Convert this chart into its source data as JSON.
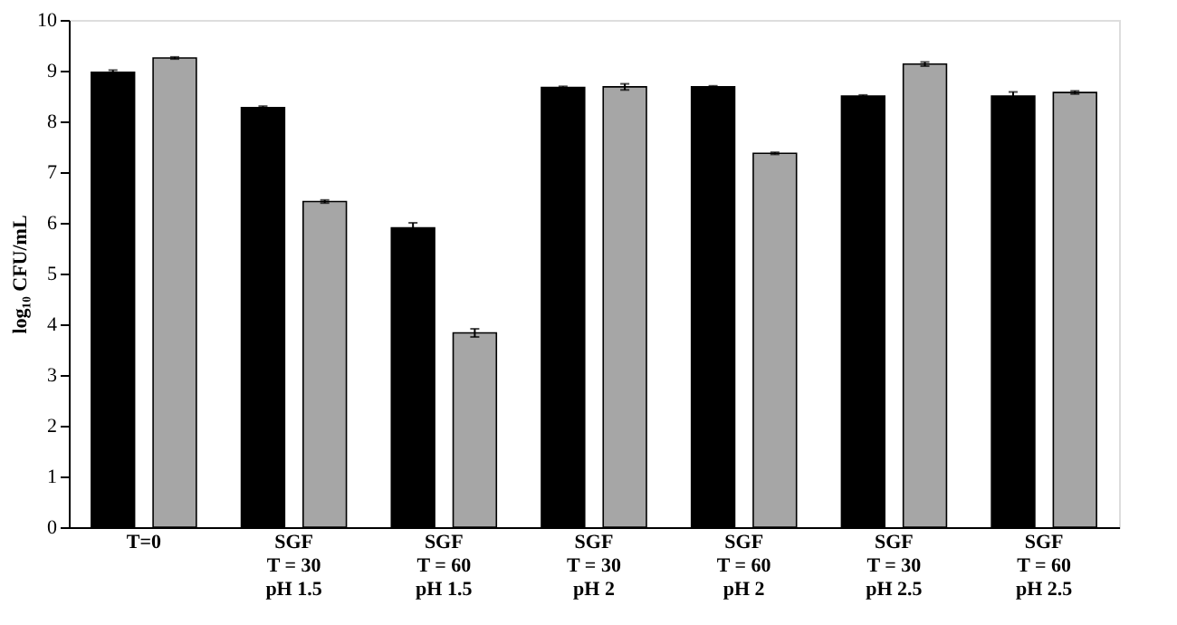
{
  "chart_data": {
    "type": "bar",
    "ylabel": "log₁₀ CFU/mL",
    "categories": [
      "T=0",
      "SGF\nT = 30\npH 1.5",
      "SGF\nT = 60\npH 1.5",
      "SGF\nT = 30\npH 2",
      "SGF\nT = 60\npH 2",
      "SGF\nT = 30\npH 2.5",
      "SGF\nT = 60\npH 2.5"
    ],
    "series": [
      {
        "color": "#000000",
        "values": [
          8.97,
          8.27,
          5.9,
          8.67,
          8.68,
          8.5,
          8.5
        ],
        "errors": [
          0.04,
          0.03,
          0.1,
          0.02,
          0.02,
          0.02,
          0.08
        ]
      },
      {
        "color": "#a6a6a6",
        "values": [
          9.25,
          6.42,
          3.83,
          8.68,
          7.37,
          9.13,
          8.57
        ],
        "errors": [
          0.02,
          0.03,
          0.08,
          0.06,
          0.02,
          0.04,
          0.03
        ]
      }
    ],
    "ylim": [
      0,
      10
    ],
    "yticks": [
      0,
      1,
      2,
      3,
      4,
      5,
      6,
      7,
      8,
      9,
      10
    ],
    "grid": false
  }
}
